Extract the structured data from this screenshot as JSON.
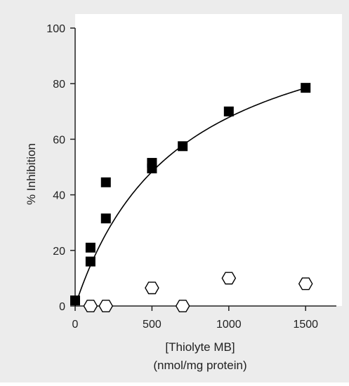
{
  "chart_data": {
    "type": "scatter",
    "xlabel": "[Thiolyte MB]",
    "xlabel_line2": "(nmol/mg protein)",
    "ylabel": "% Inhibition",
    "xlim": [
      0,
      1700
    ],
    "ylim": [
      0,
      100
    ],
    "x_ticks": [
      0,
      500,
      1000,
      1500
    ],
    "x_tick_labels": [
      "0",
      "500",
      "1000",
      "1500"
    ],
    "y_ticks": [
      0,
      20,
      40,
      60,
      80,
      100
    ],
    "y_tick_labels": [
      "0",
      "20",
      "40",
      "60",
      "80",
      "100"
    ],
    "grid": false,
    "series": [
      {
        "marker": "filled-square",
        "color": "#000000",
        "points": [
          {
            "x": 0,
            "y": 2
          },
          {
            "x": 100,
            "y": 16
          },
          {
            "x": 100,
            "y": 21
          },
          {
            "x": 200,
            "y": 31.5
          },
          {
            "x": 200,
            "y": 44.5
          },
          {
            "x": 500,
            "y": 49.5
          },
          {
            "x": 500,
            "y": 51.5
          },
          {
            "x": 700,
            "y": 57.5
          },
          {
            "x": 1000,
            "y": 70
          },
          {
            "x": 1500,
            "y": 78.5
          }
        ]
      },
      {
        "marker": "open-hexagon",
        "color": "#000000",
        "points": [
          {
            "x": 100,
            "y": 0
          },
          {
            "x": 200,
            "y": 0
          },
          {
            "x": 500,
            "y": 6.5
          },
          {
            "x": 700,
            "y": 0
          },
          {
            "x": 1000,
            "y": 10
          },
          {
            "x": 1500,
            "y": 8
          }
        ]
      }
    ],
    "fit_curve": {
      "model": "hyperbolic",
      "color": "#000000",
      "ymax": 114,
      "k": 680
    },
    "colors": {
      "background": "#ececec",
      "plot_area": "#ffffff",
      "axis": "#222222"
    }
  }
}
